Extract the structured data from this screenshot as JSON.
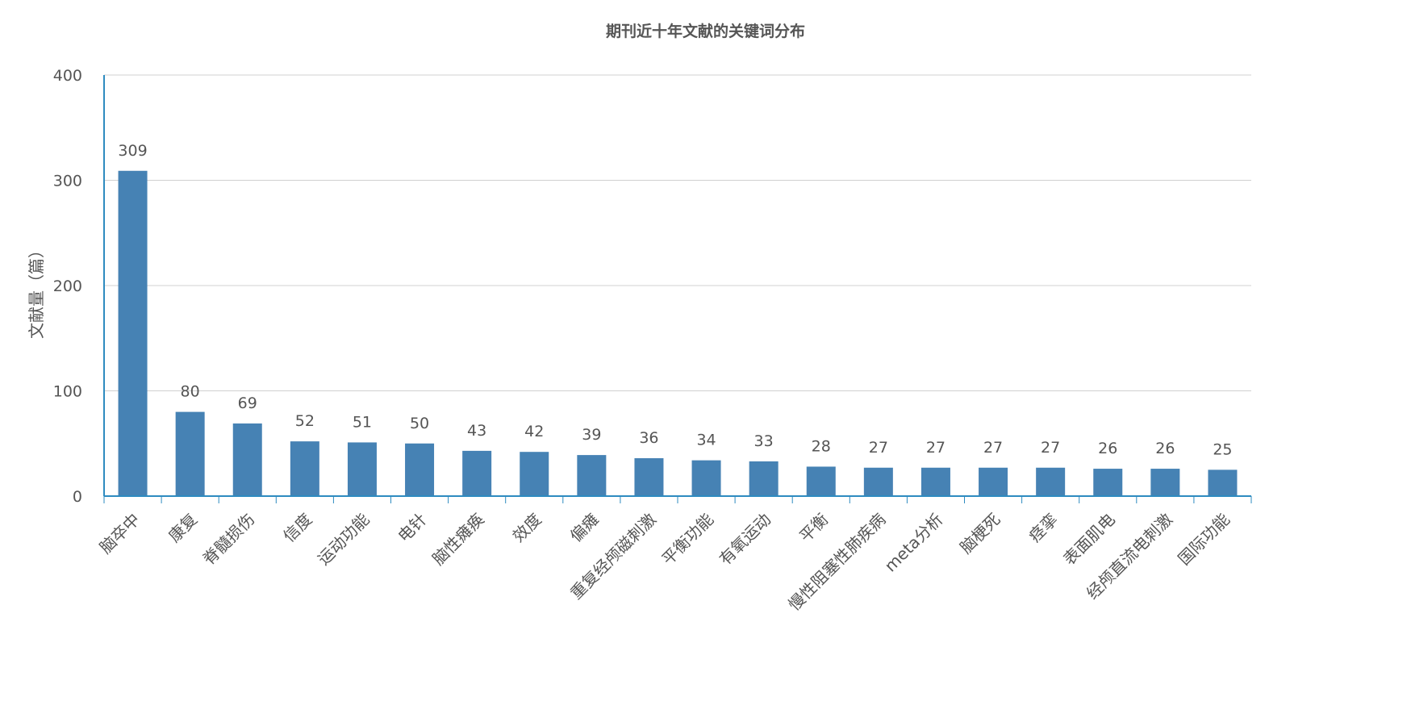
{
  "chart_data": {
    "type": "bar",
    "title": "期刊近十年文献的关键词分布",
    "xlabel": "",
    "ylabel": "文献量（篇）",
    "ylim": [
      0,
      400
    ],
    "yticks": [
      0,
      100,
      200,
      300,
      400
    ],
    "grid": true,
    "categories": [
      "脑卒中",
      "康复",
      "脊髓损伤",
      "信度",
      "运动功能",
      "电针",
      "脑性瘫痪",
      "效度",
      "偏瘫",
      "重复经颅磁刺激",
      "平衡功能",
      "有氧运动",
      "平衡",
      "慢性阻塞性肺疾病",
      "meta分析",
      "脑梗死",
      "痉挛",
      "表面肌电",
      "经颅直流电刺激",
      "国际功能"
    ],
    "values": [
      309,
      80,
      69,
      52,
      51,
      50,
      43,
      42,
      39,
      36,
      34,
      33,
      28,
      27,
      27,
      27,
      27,
      26,
      26,
      25
    ],
    "colors": {
      "bar": "#4682b4",
      "axis": "#2e8bc0",
      "grid": "#d0d0d0",
      "text": "#555555"
    }
  }
}
